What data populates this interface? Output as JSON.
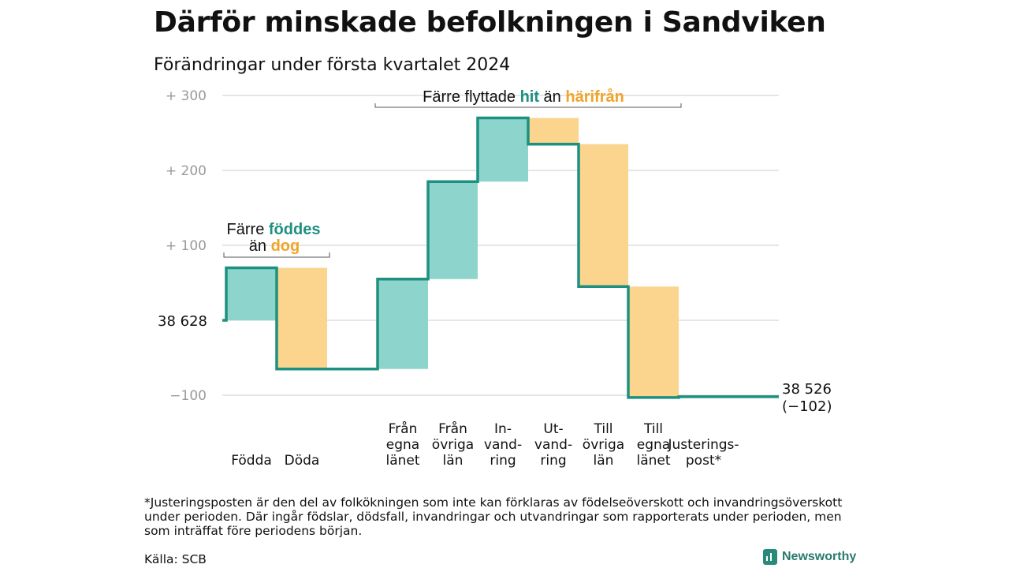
{
  "title": "Därför minskade befolkningen i Sandviken",
  "subtitle": "Förändringar under första kvartalet 2024",
  "colors": {
    "increase": "#8dd5cc",
    "decrease": "#fbd48e",
    "line": "#1e9080",
    "grid": "#dddddd",
    "tick": "#9a9a9a",
    "teal_text": "#1e9080",
    "orange_text": "#f0a429"
  },
  "chart_data": {
    "type": "waterfall",
    "start_value": 38628,
    "start_label": "38  628",
    "end_value": 38526,
    "end_label": "38 526",
    "end_change_label": "(−102)",
    "y_ticks": [
      {
        "value": 300,
        "label": "+  300"
      },
      {
        "value": 200,
        "label": "+  200"
      },
      {
        "value": 100,
        "label": "+  100"
      },
      {
        "value": 0,
        "label": ""
      },
      {
        "value": -100,
        "label": "−100"
      }
    ],
    "ylim": [
      -100,
      300
    ],
    "steps": [
      {
        "label": [
          "Födda"
        ],
        "change": 70
      },
      {
        "label": [
          "Döda"
        ],
        "change": -135
      },
      {
        "label": [],
        "change": 0
      },
      {
        "label": [
          "Från",
          "egna",
          "länet"
        ],
        "change": 120
      },
      {
        "label": [
          "Från",
          "övriga",
          "län"
        ],
        "change": 130
      },
      {
        "label": [
          "In-",
          "vand-",
          "ring"
        ],
        "change": 85
      },
      {
        "label": [
          "Ut-",
          "vand-",
          "ring"
        ],
        "change": -35
      },
      {
        "label": [
          "Till",
          "övriga",
          "län"
        ],
        "change": -190
      },
      {
        "label": [
          "Till",
          "egna",
          "länet"
        ],
        "change": -148
      },
      {
        "label": [
          "Justerings-",
          "post*"
        ],
        "change": 1
      },
      {
        "label": [],
        "change": 0
      }
    ],
    "annotations": [
      {
        "parts": [
          {
            "text": "Färre ",
            "color": "dark"
          },
          {
            "text": "föddes",
            "color": "teal"
          }
        ],
        "line2": [
          {
            "text": "än ",
            "color": "dark"
          },
          {
            "text": "dog",
            "color": "orange"
          }
        ]
      },
      {
        "parts": [
          {
            "text": "Färre flyttade ",
            "color": "dark"
          },
          {
            "text": "hit",
            "color": "teal"
          },
          {
            "text": " än ",
            "color": "dark"
          },
          {
            "text": "härifrån",
            "color": "orange"
          }
        ]
      }
    ]
  },
  "footnote": "*Justeringsposten är den del av folkökningen som inte kan förklaras av födelseöverskott och invandringsöverskott under perioden. Där ingår födslar, dödsfall, invandringar och utvandringar som rapporterats under perioden, men som inträffat före periodens början.",
  "source": "Källa: SCB",
  "brand": "Newsworthy"
}
